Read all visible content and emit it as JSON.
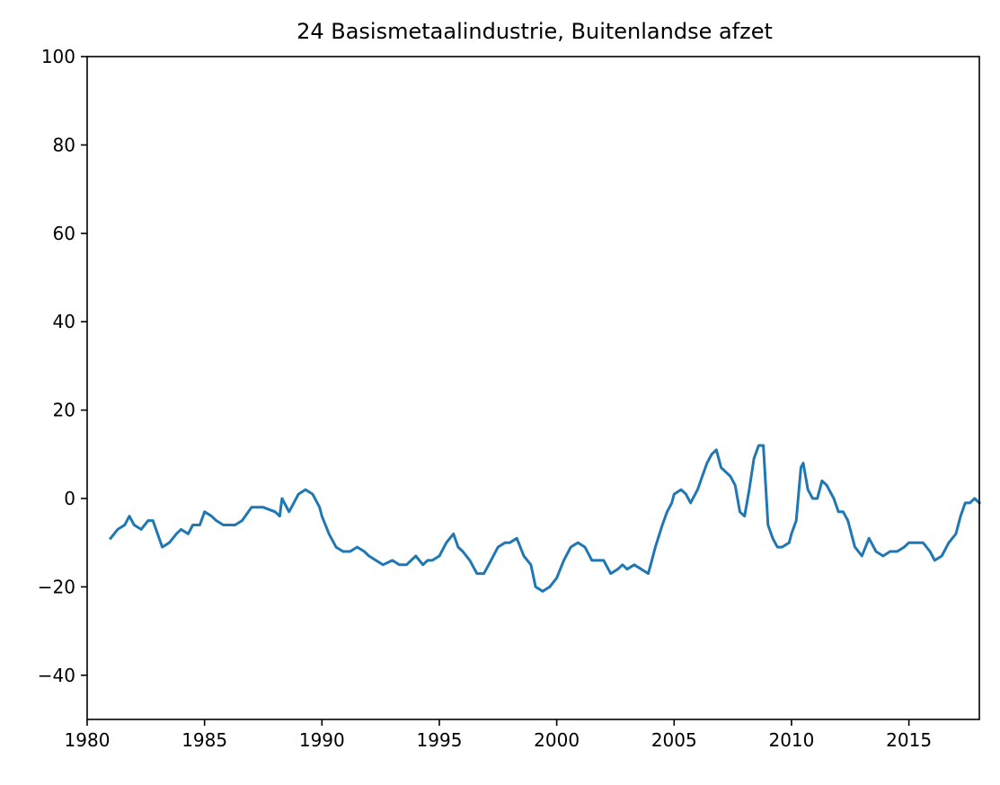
{
  "chart_data": {
    "type": "line",
    "title": "24 Basismetaalindustrie, Buitenlandse afzet",
    "xlabel": "",
    "ylabel": "",
    "xlim": [
      1980,
      2018
    ],
    "ylim": [
      -50,
      100
    ],
    "grid": false,
    "x_ticks": [
      1980,
      1985,
      1990,
      1995,
      2000,
      2005,
      2010,
      2015
    ],
    "y_ticks": [
      -40,
      -20,
      0,
      20,
      40,
      60,
      80,
      100
    ],
    "y_tick_labels": [
      "−40",
      "−20",
      "0",
      "20",
      "40",
      "60",
      "80",
      "100"
    ],
    "series": [
      {
        "color": "#1f77b4",
        "x": [
          1981.0,
          1981.3,
          1981.6,
          1981.8,
          1982.0,
          1982.3,
          1982.6,
          1982.8,
          1983.0,
          1983.2,
          1983.5,
          1983.8,
          1984.0,
          1984.3,
          1984.5,
          1984.8,
          1985.0,
          1985.3,
          1985.5,
          1985.8,
          1986.0,
          1986.3,
          1986.6,
          1987.0,
          1987.5,
          1988.0,
          1988.2,
          1988.3,
          1988.6,
          1988.8,
          1989.0,
          1989.3,
          1989.6,
          1989.9,
          1990.0,
          1990.3,
          1990.6,
          1990.9,
          1991.2,
          1991.5,
          1991.8,
          1992.0,
          1992.3,
          1992.6,
          1993.0,
          1993.3,
          1993.6,
          1993.8,
          1994.0,
          1994.3,
          1994.5,
          1994.7,
          1995.0,
          1995.3,
          1995.6,
          1995.8,
          1996.0,
          1996.3,
          1996.6,
          1996.9,
          1997.2,
          1997.5,
          1997.8,
          1998.0,
          1998.3,
          1998.6,
          1998.9,
          1999.1,
          1999.4,
          1999.7,
          2000.0,
          2000.3,
          2000.6,
          2000.9,
          2001.2,
          2001.5,
          2001.8,
          2002.0,
          2002.3,
          2002.6,
          2002.8,
          2003.0,
          2003.3,
          2003.6,
          2003.9,
          2004.0,
          2004.2,
          2004.5,
          2004.7,
          2004.9,
          2005.0,
          2005.3,
          2005.5,
          2005.7,
          2006.0,
          2006.2,
          2006.4,
          2006.6,
          2006.8,
          2007.0,
          2007.2,
          2007.4,
          2007.6,
          2007.8,
          2008.0,
          2008.2,
          2008.4,
          2008.6,
          2008.8,
          2009.0,
          2009.2,
          2009.4,
          2009.6,
          2009.9,
          2010.0,
          2010.2,
          2010.4,
          2010.5,
          2010.7,
          2010.9,
          2011.1,
          2011.3,
          2011.5,
          2011.8,
          2012.0,
          2012.2,
          2012.4,
          2012.7,
          2013.0,
          2013.3,
          2013.6,
          2013.9,
          2014.2,
          2014.5,
          2014.8,
          2015.0,
          2015.3,
          2015.6,
          2015.9,
          2016.1,
          2016.4,
          2016.7,
          2017.0,
          2017.2,
          2017.4,
          2017.6,
          2017.8,
          2018.0
        ],
        "y": [
          -9,
          -7,
          -6,
          -4,
          -6,
          -7,
          -5,
          -5,
          -8,
          -11,
          -10,
          -8,
          -7,
          -8,
          -6,
          -6,
          -3,
          -4,
          -5,
          -6,
          -6,
          -6,
          -5,
          -2,
          -2,
          -3,
          -4,
          0,
          -3,
          -1,
          1,
          2,
          1,
          -2,
          -4,
          -8,
          -11,
          -12,
          -12,
          -11,
          -12,
          -13,
          -14,
          -15,
          -14,
          -15,
          -15,
          -14,
          -13,
          -15,
          -14,
          -14,
          -13,
          -10,
          -8,
          -11,
          -12,
          -14,
          -17,
          -17,
          -14,
          -11,
          -10,
          -10,
          -9,
          -13,
          -15,
          -20,
          -21,
          -20,
          -18,
          -14,
          -11,
          -10,
          -11,
          -14,
          -14,
          -14,
          -17,
          -16,
          -15,
          -16,
          -15,
          -16,
          -17,
          -15,
          -11,
          -6,
          -3,
          -1,
          1,
          2,
          1,
          -1,
          2,
          5,
          8,
          10,
          11,
          7,
          6,
          5,
          3,
          -3,
          -4,
          2,
          9,
          12,
          12,
          -6,
          -9,
          -11,
          -11,
          -10,
          -8,
          -5,
          7,
          8,
          2,
          0,
          0,
          4,
          3,
          0,
          -3,
          -3,
          -5,
          -11,
          -13,
          -9,
          -12,
          -13,
          -12,
          -12,
          -11,
          -10,
          -10,
          -10,
          -12,
          -14,
          -13,
          -10,
          -8,
          -4,
          -1,
          -1,
          0,
          -1
        ]
      }
    ]
  }
}
